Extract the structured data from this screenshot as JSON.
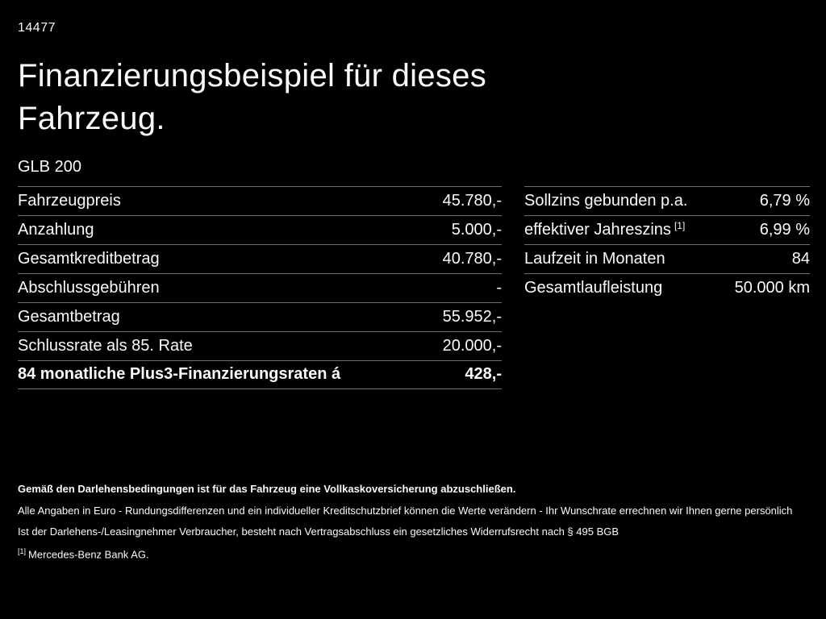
{
  "page": {
    "id": "14477",
    "title_line1": "Finanzierungsbeispiel für dieses",
    "title_line2": "Fahrzeug.",
    "model": "GLB 200"
  },
  "left_table": {
    "rows": [
      {
        "label": "Fahrzeugpreis",
        "value": "45.780,-",
        "bold": false
      },
      {
        "label": "Anzahlung",
        "value": "5.000,-",
        "bold": false
      },
      {
        "label": "Gesamtkreditbetrag",
        "value": "40.780,-",
        "bold": false
      },
      {
        "label": "Abschlussgebühren",
        "value": "-",
        "bold": false
      },
      {
        "label": "Gesamtbetrag",
        "value": "55.952,-",
        "bold": false
      },
      {
        "label": "Schlussrate als 85. Rate",
        "value": "20.000,-",
        "bold": false
      },
      {
        "label": "84 monatliche Plus3-Finanzierungsraten á",
        "value": "428,-",
        "bold": true
      }
    ]
  },
  "right_table": {
    "rows": [
      {
        "label": "Sollzins gebunden p.a.",
        "value": "6,79 %"
      },
      {
        "label": "effektiver Jahreszins",
        "sup": "[1]",
        "value": "6,99 %"
      },
      {
        "label": "Laufzeit in Monaten",
        "value": "84"
      },
      {
        "label": "Gesamtlaufleistung",
        "value": "50.000 km"
      }
    ]
  },
  "footer": {
    "line1": "Gemäß den Darlehensbedingungen ist für das Fahrzeug eine Vollkaskoversicherung abzuschließen.",
    "line2": "Alle Angaben in Euro - Rundungsdifferenzen und ein individueller Kreditschutzbrief können die Werte verändern - Ihr Wunschrate errechnen wir Ihnen gerne persönlich",
    "line3": "Ist der Darlehens-/Leasingnehmer Verbraucher, besteht nach Vertragsabschluss ein gesetzliches Widerrufsrecht nach § 495 BGB",
    "footnote_marker": "[1]",
    "footnote_text": "Mercedes-Benz Bank AG."
  },
  "colors": {
    "background": "#000000",
    "text": "#fafafa",
    "divider": "#6f6f6f"
  }
}
